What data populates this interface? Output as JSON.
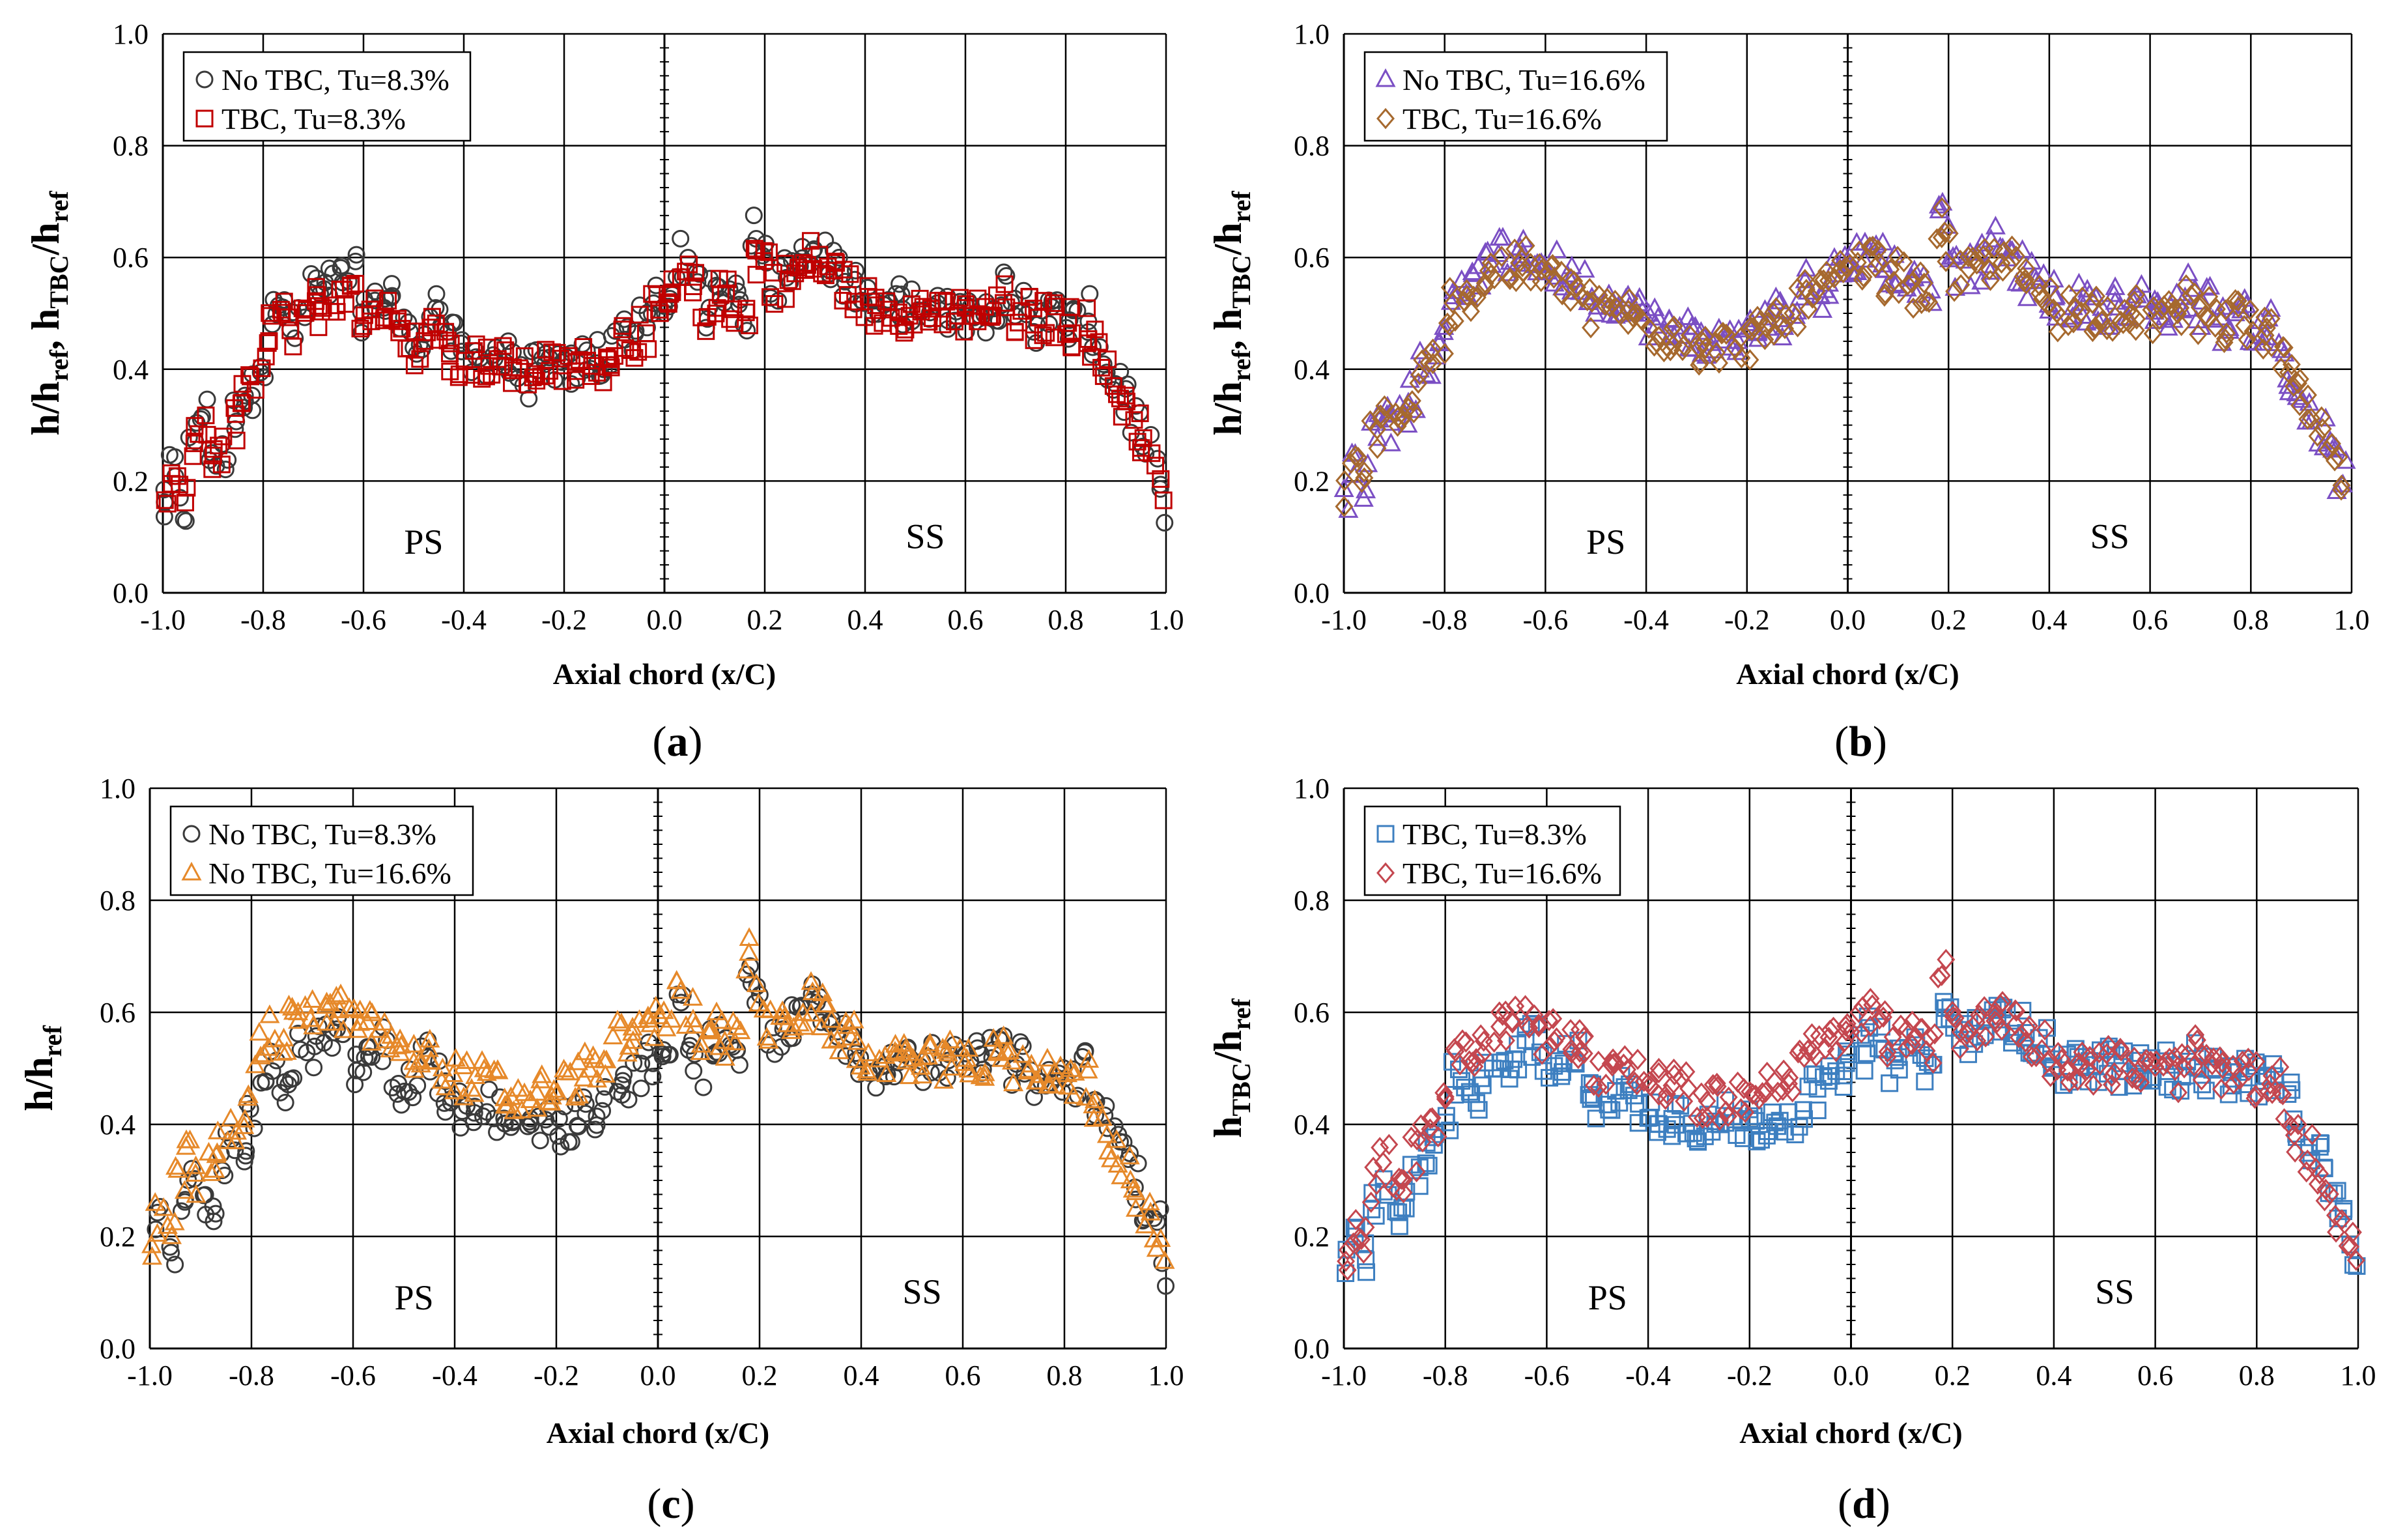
{
  "chart_data": [
    {
      "type": "scatter",
      "panel_label": "a",
      "xlabel": "Axial chord (x/C)",
      "ylabel": {
        "parts": [
          {
            "text": "h/h",
            "sub": false
          },
          {
            "text": "ref",
            "sub": true
          },
          {
            "text": ", h",
            "sub": false
          },
          {
            "text": "TBC",
            "sub": true
          },
          {
            "text": "/h",
            "sub": false
          },
          {
            "text": "ref",
            "sub": true
          }
        ]
      },
      "xlim": [
        -1.0,
        1.0
      ],
      "ylim": [
        0.0,
        1.0
      ],
      "xticks": [
        "-1.0",
        "-0.8",
        "-0.6",
        "-0.4",
        "-0.2",
        "0.0",
        "0.2",
        "0.4",
        "0.6",
        "0.8",
        "1.0"
      ],
      "yticks": [
        "0.0",
        "0.2",
        "0.4",
        "0.6",
        "0.8",
        "1.0"
      ],
      "grid": true,
      "regions": [
        "PS",
        "SS"
      ],
      "legend_position": "top-left",
      "series": [
        {
          "name": "No TBC, Tu=8.3%",
          "marker": "circle",
          "color": "#3a3a3a"
        },
        {
          "name": "TBC, Tu=8.3%",
          "marker": "square",
          "color": "#c00000"
        }
      ]
    },
    {
      "type": "scatter",
      "panel_label": "b",
      "xlabel": "Axial chord (x/C)",
      "ylabel": {
        "parts": [
          {
            "text": "h/h",
            "sub": false
          },
          {
            "text": "ref",
            "sub": true
          },
          {
            "text": ", h",
            "sub": false
          },
          {
            "text": "TBC",
            "sub": true
          },
          {
            "text": "/h",
            "sub": false
          },
          {
            "text": "ref",
            "sub": true
          }
        ]
      },
      "xlim": [
        -1.0,
        1.0
      ],
      "ylim": [
        0.0,
        1.0
      ],
      "xticks": [
        "-1.0",
        "-0.8",
        "-0.6",
        "-0.4",
        "-0.2",
        "0.0",
        "0.2",
        "0.4",
        "0.6",
        "0.8",
        "1.0"
      ],
      "yticks": [
        "0.0",
        "0.2",
        "0.4",
        "0.6",
        "0.8",
        "1.0"
      ],
      "grid": true,
      "regions": [
        "PS",
        "SS"
      ],
      "legend_position": "top-left",
      "series": [
        {
          "name": "No TBC, Tu=16.6%",
          "marker": "triangle",
          "color": "#7b4fc4"
        },
        {
          "name": "TBC, Tu=16.6%",
          "marker": "diamond",
          "color": "#a6692e"
        }
      ]
    },
    {
      "type": "scatter",
      "panel_label": "c",
      "xlabel": "Axial chord (x/C)",
      "ylabel": {
        "parts": [
          {
            "text": "h/h",
            "sub": false
          },
          {
            "text": "ref",
            "sub": true
          }
        ]
      },
      "xlim": [
        -1.0,
        1.0
      ],
      "ylim": [
        0.0,
        1.0
      ],
      "xticks": [
        "-1.0",
        "-0.8",
        "-0.6",
        "-0.4",
        "-0.2",
        "0.0",
        "0.2",
        "0.4",
        "0.6",
        "0.8",
        "1.0"
      ],
      "yticks": [
        "0.0",
        "0.2",
        "0.4",
        "0.6",
        "0.8",
        "1.0"
      ],
      "grid": true,
      "regions": [
        "PS",
        "SS"
      ],
      "legend_position": "top-left",
      "series": [
        {
          "name": "No TBC, Tu=8.3%",
          "marker": "circle",
          "color": "#3a3a3a"
        },
        {
          "name": "No TBC, Tu=16.6%",
          "marker": "triangle",
          "color": "#e6892a"
        }
      ]
    },
    {
      "type": "scatter",
      "panel_label": "d",
      "xlabel": "Axial chord (x/C)",
      "ylabel": {
        "parts": [
          {
            "text": "h",
            "sub": false
          },
          {
            "text": "TBC",
            "sub": true
          },
          {
            "text": "/h",
            "sub": false
          },
          {
            "text": "ref",
            "sub": true
          }
        ]
      },
      "xlim": [
        -1.0,
        1.0
      ],
      "ylim": [
        0.0,
        1.0
      ],
      "xticks": [
        "-1.0",
        "-0.8",
        "-0.6",
        "-0.4",
        "-0.2",
        "0.0",
        "0.2",
        "0.4",
        "0.6",
        "0.8",
        "1.0"
      ],
      "yticks": [
        "0.0",
        "0.2",
        "0.4",
        "0.6",
        "0.8",
        "1.0"
      ],
      "grid": true,
      "regions": [
        "PS",
        "SS"
      ],
      "legend_position": "top-left",
      "series": [
        {
          "name": "TBC, Tu=8.3%",
          "marker": "square",
          "color": "#3d7fc0"
        },
        {
          "name": "TBC, Tu=16.6%",
          "marker": "diamond",
          "color": "#c4474f"
        }
      ]
    }
  ],
  "profiles": {
    "x": [
      -1.0,
      -0.98,
      -0.96,
      -0.94,
      -0.92,
      -0.9,
      -0.88,
      -0.86,
      -0.84,
      -0.82,
      -0.8,
      -0.78,
      -0.76,
      -0.74,
      -0.72,
      -0.7,
      -0.68,
      -0.66,
      -0.64,
      -0.62,
      -0.6,
      -0.58,
      -0.56,
      -0.54,
      -0.52,
      -0.5,
      -0.48,
      -0.46,
      -0.44,
      -0.42,
      -0.4,
      -0.38,
      -0.36,
      -0.34,
      -0.32,
      -0.3,
      -0.28,
      -0.26,
      -0.24,
      -0.22,
      -0.2,
      -0.18,
      -0.16,
      -0.14,
      -0.12,
      -0.1,
      -0.08,
      -0.06,
      -0.04,
      -0.02,
      0.0,
      0.02,
      0.04,
      0.06,
      0.08,
      0.1,
      0.12,
      0.14,
      0.16,
      0.18,
      0.2,
      0.22,
      0.24,
      0.26,
      0.28,
      0.3,
      0.32,
      0.34,
      0.36,
      0.38,
      0.4,
      0.42,
      0.44,
      0.46,
      0.48,
      0.5,
      0.52,
      0.54,
      0.56,
      0.58,
      0.6,
      0.62,
      0.64,
      0.66,
      0.68,
      0.7,
      0.72,
      0.74,
      0.76,
      0.78,
      0.8,
      0.82,
      0.84,
      0.86,
      0.88,
      0.9,
      0.92,
      0.94,
      0.96,
      0.98,
      1.0
    ],
    "noTBC_8.3": [
      0.15,
      0.22,
      0.15,
      0.28,
      0.32,
      0.25,
      0.24,
      0.32,
      0.36,
      0.36,
      0.42,
      0.5,
      0.51,
      0.47,
      0.5,
      0.55,
      0.53,
      0.55,
      0.56,
      0.57,
      0.5,
      0.51,
      0.53,
      0.54,
      0.47,
      0.44,
      0.47,
      0.52,
      0.48,
      0.45,
      0.43,
      0.42,
      0.42,
      0.43,
      0.42,
      0.4,
      0.38,
      0.4,
      0.4,
      0.41,
      0.39,
      0.4,
      0.42,
      0.43,
      0.4,
      0.44,
      0.48,
      0.46,
      0.48,
      0.52,
      0.5,
      0.55,
      0.6,
      0.55,
      0.5,
      0.55,
      0.55,
      0.52,
      0.5,
      0.65,
      0.62,
      0.55,
      0.57,
      0.58,
      0.6,
      0.62,
      0.6,
      0.58,
      0.56,
      0.55,
      0.52,
      0.5,
      0.52,
      0.52,
      0.51,
      0.52,
      0.51,
      0.52,
      0.5,
      0.52,
      0.5,
      0.52,
      0.5,
      0.52,
      0.54,
      0.5,
      0.52,
      0.48,
      0.5,
      0.5,
      0.48,
      0.48,
      0.5,
      0.45,
      0.4,
      0.38,
      0.35,
      0.3,
      0.25,
      0.22,
      0.14
    ],
    "TBC_8.3": [
      0.15,
      0.2,
      0.16,
      0.27,
      0.3,
      0.25,
      0.25,
      0.3,
      0.35,
      0.36,
      0.42,
      0.48,
      0.49,
      0.46,
      0.48,
      0.52,
      0.51,
      0.53,
      0.55,
      0.55,
      0.49,
      0.5,
      0.52,
      0.52,
      0.46,
      0.44,
      0.45,
      0.47,
      0.45,
      0.43,
      0.42,
      0.42,
      0.41,
      0.42,
      0.41,
      0.4,
      0.39,
      0.4,
      0.41,
      0.4,
      0.4,
      0.4,
      0.41,
      0.42,
      0.41,
      0.43,
      0.46,
      0.45,
      0.47,
      0.5,
      0.5,
      0.53,
      0.56,
      0.54,
      0.5,
      0.53,
      0.53,
      0.51,
      0.5,
      0.6,
      0.6,
      0.55,
      0.56,
      0.57,
      0.58,
      0.6,
      0.58,
      0.57,
      0.55,
      0.54,
      0.52,
      0.5,
      0.51,
      0.51,
      0.5,
      0.51,
      0.5,
      0.51,
      0.49,
      0.5,
      0.49,
      0.5,
      0.49,
      0.5,
      0.52,
      0.49,
      0.5,
      0.48,
      0.49,
      0.49,
      0.48,
      0.47,
      0.48,
      0.44,
      0.4,
      0.37,
      0.34,
      0.3,
      0.25,
      0.22,
      0.15
    ],
    "noTBC_16.6": [
      0.17,
      0.23,
      0.2,
      0.3,
      0.34,
      0.3,
      0.32,
      0.36,
      0.4,
      0.42,
      0.47,
      0.54,
      0.56,
      0.55,
      0.58,
      0.61,
      0.6,
      0.6,
      0.6,
      0.6,
      0.58,
      0.58,
      0.57,
      0.56,
      0.55,
      0.52,
      0.52,
      0.53,
      0.52,
      0.5,
      0.49,
      0.48,
      0.47,
      0.48,
      0.47,
      0.45,
      0.44,
      0.45,
      0.45,
      0.46,
      0.46,
      0.47,
      0.48,
      0.5,
      0.49,
      0.52,
      0.55,
      0.54,
      0.56,
      0.58,
      0.58,
      0.6,
      0.63,
      0.6,
      0.56,
      0.58,
      0.57,
      0.55,
      0.55,
      0.7,
      0.63,
      0.57,
      0.58,
      0.59,
      0.6,
      0.62,
      0.6,
      0.58,
      0.56,
      0.55,
      0.53,
      0.51,
      0.52,
      0.52,
      0.51,
      0.52,
      0.51,
      0.52,
      0.5,
      0.52,
      0.5,
      0.52,
      0.5,
      0.52,
      0.54,
      0.5,
      0.52,
      0.48,
      0.5,
      0.5,
      0.48,
      0.47,
      0.48,
      0.43,
      0.38,
      0.35,
      0.32,
      0.28,
      0.24,
      0.21,
      0.15
    ],
    "TBC_16.6": [
      0.17,
      0.22,
      0.2,
      0.29,
      0.33,
      0.3,
      0.31,
      0.35,
      0.39,
      0.41,
      0.46,
      0.52,
      0.54,
      0.53,
      0.56,
      0.58,
      0.58,
      0.58,
      0.59,
      0.58,
      0.56,
      0.56,
      0.55,
      0.55,
      0.53,
      0.5,
      0.5,
      0.51,
      0.5,
      0.49,
      0.48,
      0.47,
      0.46,
      0.47,
      0.46,
      0.44,
      0.44,
      0.44,
      0.44,
      0.45,
      0.45,
      0.46,
      0.47,
      0.49,
      0.48,
      0.51,
      0.53,
      0.53,
      0.55,
      0.56,
      0.57,
      0.58,
      0.6,
      0.58,
      0.55,
      0.57,
      0.56,
      0.54,
      0.54,
      0.66,
      0.62,
      0.56,
      0.57,
      0.58,
      0.59,
      0.6,
      0.59,
      0.57,
      0.55,
      0.54,
      0.52,
      0.5,
      0.51,
      0.51,
      0.5,
      0.51,
      0.5,
      0.51,
      0.49,
      0.5,
      0.49,
      0.5,
      0.49,
      0.51,
      0.53,
      0.49,
      0.51,
      0.48,
      0.49,
      0.49,
      0.48,
      0.46,
      0.47,
      0.42,
      0.38,
      0.35,
      0.32,
      0.28,
      0.24,
      0.21,
      0.15
    ]
  },
  "panel_series_keys": [
    [
      "noTBC_8.3",
      "TBC_8.3"
    ],
    [
      "noTBC_16.6",
      "TBC_16.6"
    ],
    [
      "noTBC_8.3",
      "noTBC_16.6"
    ],
    [
      "TBC_8.3",
      "TBC_16.6"
    ]
  ]
}
